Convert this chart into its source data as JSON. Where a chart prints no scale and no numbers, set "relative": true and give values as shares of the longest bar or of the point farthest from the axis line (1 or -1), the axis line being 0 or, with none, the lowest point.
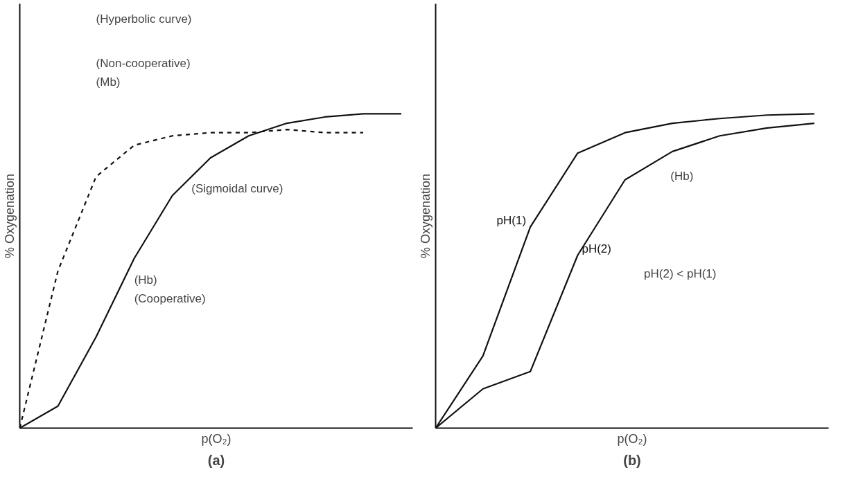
{
  "chart_data": [
    {
      "type": "line",
      "title": "(a)",
      "xlabel": "p(O₂)",
      "ylabel": "% Oxygenation",
      "relative": true,
      "legend": false,
      "marker": "none",
      "categories": [
        null,
        null,
        null,
        null,
        null,
        null,
        null,
        null,
        null,
        null,
        null
      ],
      "series": [
        {
          "color": "#111111",
          "line_style": "solid",
          "values": [
            0,
            0.07,
            0.29,
            0.54,
            0.74,
            0.86,
            0.93,
            0.97,
            0.99,
            1.0,
            1.0
          ]
        },
        {
          "color": "#111111",
          "line_style": "dashed",
          "values": [
            0,
            0.5,
            0.8,
            0.9,
            0.93,
            0.94,
            0.94,
            0.95,
            0.94,
            0.94,
            null
          ]
        }
      ],
      "annotations": [
        "(Hyperbolic curve)",
        "(Non-cooperative)",
        "(Mb)",
        "(Sigmoidal curve)",
        "(Hb)",
        "(Cooperative)"
      ]
    },
    {
      "type": "line",
      "title": "(b)",
      "xlabel": "p(O₂)",
      "ylabel": "% Oxygenation",
      "relative": true,
      "legend": false,
      "marker": "none",
      "categories": [
        null,
        null,
        null,
        null,
        null,
        null,
        null,
        null,
        null
      ],
      "series": [
        {
          "name": "pH(1)",
          "color": "#111111",
          "line_style": "solid",
          "values": [
            0,
            0.23,
            0.64,
            0.875,
            0.94,
            0.97,
            0.985,
            0.996,
            1.0
          ]
        },
        {
          "name": "pH(2)",
          "color": "#111111",
          "line_style": "solid",
          "values": [
            0,
            0.125,
            0.18,
            0.55,
            0.79,
            0.88,
            0.93,
            0.955,
            0.97
          ]
        }
      ],
      "annotations": [
        "(Hb)",
        "pH(2) < pH(1)"
      ]
    }
  ]
}
